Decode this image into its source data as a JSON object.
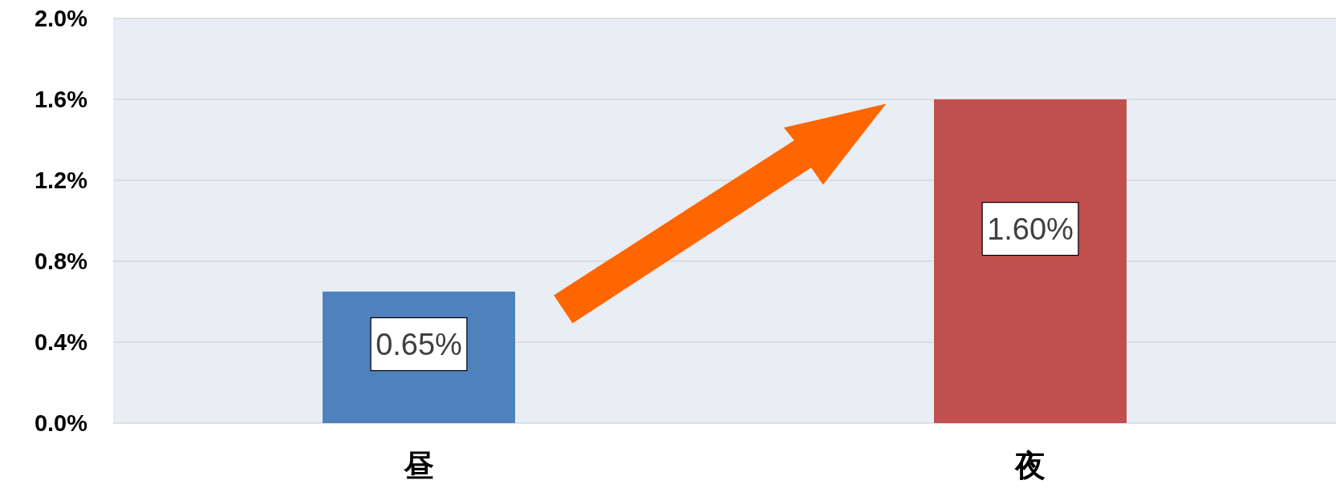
{
  "chart_data": {
    "type": "bar",
    "categories": [
      "昼",
      "夜"
    ],
    "values": [
      0.65,
      1.6
    ],
    "colors": [
      "#4f81bd",
      "#c0504d"
    ],
    "value_labels": [
      "0.65%",
      "1.60%"
    ],
    "ylim": [
      0,
      2
    ],
    "yticks": [
      {
        "value": 0,
        "label": "0.0%"
      },
      {
        "value": 0.4,
        "label": "0.4%"
      },
      {
        "value": 0.8,
        "label": "0.8%"
      },
      {
        "value": 1.2,
        "label": "1.2%"
      },
      {
        "value": 1.6,
        "label": "1.6%"
      },
      {
        "value": 2,
        "label": "2.0%"
      }
    ],
    "grid": "y"
  }
}
